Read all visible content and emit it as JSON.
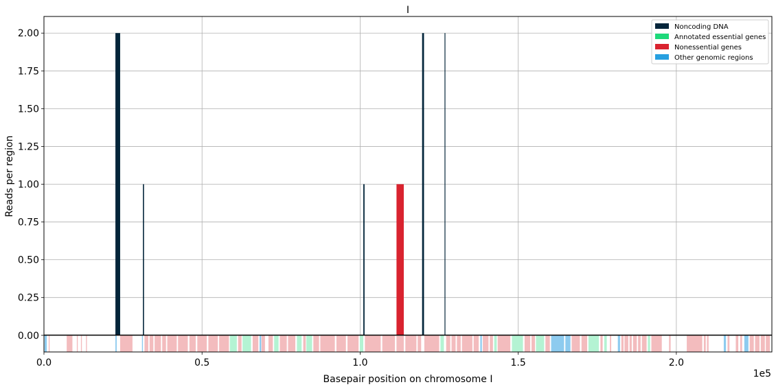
{
  "chart_data": {
    "type": "bar",
    "title": "I",
    "xlabel": "Basepair position on chromosome I",
    "ylabel": "Reads per region",
    "xlim": [
      0,
      230218
    ],
    "ylim": [
      -0.11,
      2.11
    ],
    "x_offset_label": "1e5",
    "x_ticks": [
      0,
      50000,
      100000,
      150000,
      200000
    ],
    "x_tick_labels": [
      "0.0",
      "0.5",
      "1.0",
      "1.5",
      "2.0"
    ],
    "y_ticks": [
      0.0,
      0.25,
      0.5,
      0.75,
      1.0,
      1.25,
      1.5,
      1.75,
      2.0
    ],
    "y_tick_labels": [
      "0.00",
      "0.25",
      "0.50",
      "0.75",
      "1.00",
      "1.25",
      "1.50",
      "1.75",
      "2.00"
    ],
    "grid": true,
    "legend_position": "top-right",
    "series": [
      {
        "name": "Noncoding DNA",
        "color": "#03253a"
      },
      {
        "name": "Annotated essential genes",
        "color": "#1ed97a"
      },
      {
        "name": "Nonessential genes",
        "color": "#d9232f"
      },
      {
        "name": "Other genomic regions",
        "color": "#27a0e0"
      }
    ],
    "bars": [
      {
        "start": 22600,
        "end": 24100,
        "value": 2,
        "series": "Noncoding DNA"
      },
      {
        "start": 31300,
        "end": 31650,
        "value": 1,
        "series": "Noncoding DNA"
      },
      {
        "start": 101000,
        "end": 101400,
        "value": 1,
        "series": "Noncoding DNA"
      },
      {
        "start": 111500,
        "end": 113800,
        "value": 1,
        "series": "Nonessential genes"
      },
      {
        "start": 119600,
        "end": 120200,
        "value": 2,
        "series": "Noncoding DNA"
      },
      {
        "start": 126700,
        "end": 126950,
        "value": 2,
        "series": "Noncoding DNA"
      }
    ],
    "gene_track": {
      "colors": {
        "essential": "#b4f3d3",
        "nonessential": "#f3bcbe",
        "other": "#8dcbef"
      },
      "regions": [
        {
          "start": 200,
          "end": 900,
          "type": "other"
        },
        {
          "start": 1500,
          "end": 1800,
          "type": "nonessential"
        },
        {
          "start": 7200,
          "end": 9000,
          "type": "nonessential"
        },
        {
          "start": 10400,
          "end": 10700,
          "type": "nonessential"
        },
        {
          "start": 11700,
          "end": 12000,
          "type": "nonessential"
        },
        {
          "start": 13300,
          "end": 13600,
          "type": "nonessential"
        },
        {
          "start": 22600,
          "end": 23000,
          "type": "other"
        },
        {
          "start": 24100,
          "end": 28000,
          "type": "nonessential"
        },
        {
          "start": 31000,
          "end": 31300,
          "type": "other"
        },
        {
          "start": 31800,
          "end": 33000,
          "type": "nonessential"
        },
        {
          "start": 33400,
          "end": 34600,
          "type": "nonessential"
        },
        {
          "start": 35000,
          "end": 37000,
          "type": "nonessential"
        },
        {
          "start": 37400,
          "end": 38600,
          "type": "nonessential"
        },
        {
          "start": 39000,
          "end": 42000,
          "type": "nonessential"
        },
        {
          "start": 42400,
          "end": 45500,
          "type": "nonessential"
        },
        {
          "start": 46000,
          "end": 48000,
          "type": "nonessential"
        },
        {
          "start": 48500,
          "end": 51500,
          "type": "nonessential"
        },
        {
          "start": 52000,
          "end": 55000,
          "type": "nonessential"
        },
        {
          "start": 55400,
          "end": 58500,
          "type": "nonessential"
        },
        {
          "start": 58800,
          "end": 61000,
          "type": "essential"
        },
        {
          "start": 61400,
          "end": 62500,
          "type": "nonessential"
        },
        {
          "start": 62800,
          "end": 65500,
          "type": "essential"
        },
        {
          "start": 66000,
          "end": 67800,
          "type": "nonessential"
        },
        {
          "start": 68200,
          "end": 68700,
          "type": "other"
        },
        {
          "start": 68800,
          "end": 69900,
          "type": "nonessential"
        },
        {
          "start": 71000,
          "end": 72400,
          "type": "nonessential"
        },
        {
          "start": 72800,
          "end": 74200,
          "type": "essential"
        },
        {
          "start": 74600,
          "end": 76800,
          "type": "nonessential"
        },
        {
          "start": 77200,
          "end": 79500,
          "type": "nonessential"
        },
        {
          "start": 80000,
          "end": 81500,
          "type": "essential"
        },
        {
          "start": 82000,
          "end": 82800,
          "type": "nonessential"
        },
        {
          "start": 83000,
          "end": 84800,
          "type": "essential"
        },
        {
          "start": 85200,
          "end": 87000,
          "type": "nonessential"
        },
        {
          "start": 87400,
          "end": 92000,
          "type": "nonessential"
        },
        {
          "start": 92500,
          "end": 95500,
          "type": "nonessential"
        },
        {
          "start": 96000,
          "end": 99500,
          "type": "nonessential"
        },
        {
          "start": 99900,
          "end": 101000,
          "type": "essential"
        },
        {
          "start": 101500,
          "end": 106500,
          "type": "nonessential"
        },
        {
          "start": 107000,
          "end": 111000,
          "type": "nonessential"
        },
        {
          "start": 111500,
          "end": 113800,
          "type": "nonessential"
        },
        {
          "start": 114300,
          "end": 117800,
          "type": "nonessential"
        },
        {
          "start": 118200,
          "end": 119300,
          "type": "nonessential"
        },
        {
          "start": 120300,
          "end": 125000,
          "type": "nonessential"
        },
        {
          "start": 125400,
          "end": 126500,
          "type": "essential"
        },
        {
          "start": 127200,
          "end": 128500,
          "type": "nonessential"
        },
        {
          "start": 128900,
          "end": 130200,
          "type": "nonessential"
        },
        {
          "start": 130600,
          "end": 131800,
          "type": "nonessential"
        },
        {
          "start": 132200,
          "end": 135500,
          "type": "nonessential"
        },
        {
          "start": 135900,
          "end": 137500,
          "type": "nonessential"
        },
        {
          "start": 138000,
          "end": 138500,
          "type": "other"
        },
        {
          "start": 138800,
          "end": 140600,
          "type": "nonessential"
        },
        {
          "start": 141000,
          "end": 142000,
          "type": "nonessential"
        },
        {
          "start": 142400,
          "end": 143200,
          "type": "essential"
        },
        {
          "start": 143500,
          "end": 147500,
          "type": "nonessential"
        },
        {
          "start": 148000,
          "end": 151500,
          "type": "essential"
        },
        {
          "start": 152000,
          "end": 153800,
          "type": "nonessential"
        },
        {
          "start": 154200,
          "end": 155300,
          "type": "nonessential"
        },
        {
          "start": 155600,
          "end": 158200,
          "type": "essential"
        },
        {
          "start": 158600,
          "end": 160000,
          "type": "nonessential"
        },
        {
          "start": 160400,
          "end": 164500,
          "type": "other"
        },
        {
          "start": 164900,
          "end": 166500,
          "type": "other"
        },
        {
          "start": 166900,
          "end": 169500,
          "type": "nonessential"
        },
        {
          "start": 170000,
          "end": 171800,
          "type": "nonessential"
        },
        {
          "start": 172200,
          "end": 175500,
          "type": "essential"
        },
        {
          "start": 176000,
          "end": 176700,
          "type": "nonessential"
        },
        {
          "start": 177200,
          "end": 178000,
          "type": "essential"
        },
        {
          "start": 179000,
          "end": 179400,
          "type": "nonessential"
        },
        {
          "start": 181500,
          "end": 182200,
          "type": "other"
        },
        {
          "start": 182600,
          "end": 183300,
          "type": "nonessential"
        },
        {
          "start": 183600,
          "end": 184800,
          "type": "nonessential"
        },
        {
          "start": 185200,
          "end": 185900,
          "type": "nonessential"
        },
        {
          "start": 186300,
          "end": 187500,
          "type": "nonessential"
        },
        {
          "start": 187900,
          "end": 188700,
          "type": "nonessential"
        },
        {
          "start": 189100,
          "end": 190600,
          "type": "nonessential"
        },
        {
          "start": 191000,
          "end": 191700,
          "type": "essential"
        },
        {
          "start": 192100,
          "end": 195400,
          "type": "nonessential"
        },
        {
          "start": 197700,
          "end": 198200,
          "type": "nonessential"
        },
        {
          "start": 203300,
          "end": 208200,
          "type": "nonessential"
        },
        {
          "start": 208700,
          "end": 209300,
          "type": "nonessential"
        },
        {
          "start": 209700,
          "end": 210200,
          "type": "nonessential"
        },
        {
          "start": 215000,
          "end": 215700,
          "type": "other"
        },
        {
          "start": 216200,
          "end": 216800,
          "type": "nonessential"
        },
        {
          "start": 218800,
          "end": 219600,
          "type": "nonessential"
        },
        {
          "start": 220200,
          "end": 220800,
          "type": "nonessential"
        },
        {
          "start": 221500,
          "end": 222800,
          "type": "other"
        },
        {
          "start": 223200,
          "end": 224500,
          "type": "nonessential"
        },
        {
          "start": 224900,
          "end": 226300,
          "type": "nonessential"
        },
        {
          "start": 226700,
          "end": 228000,
          "type": "nonessential"
        },
        {
          "start": 228300,
          "end": 229600,
          "type": "nonessential"
        }
      ]
    }
  }
}
